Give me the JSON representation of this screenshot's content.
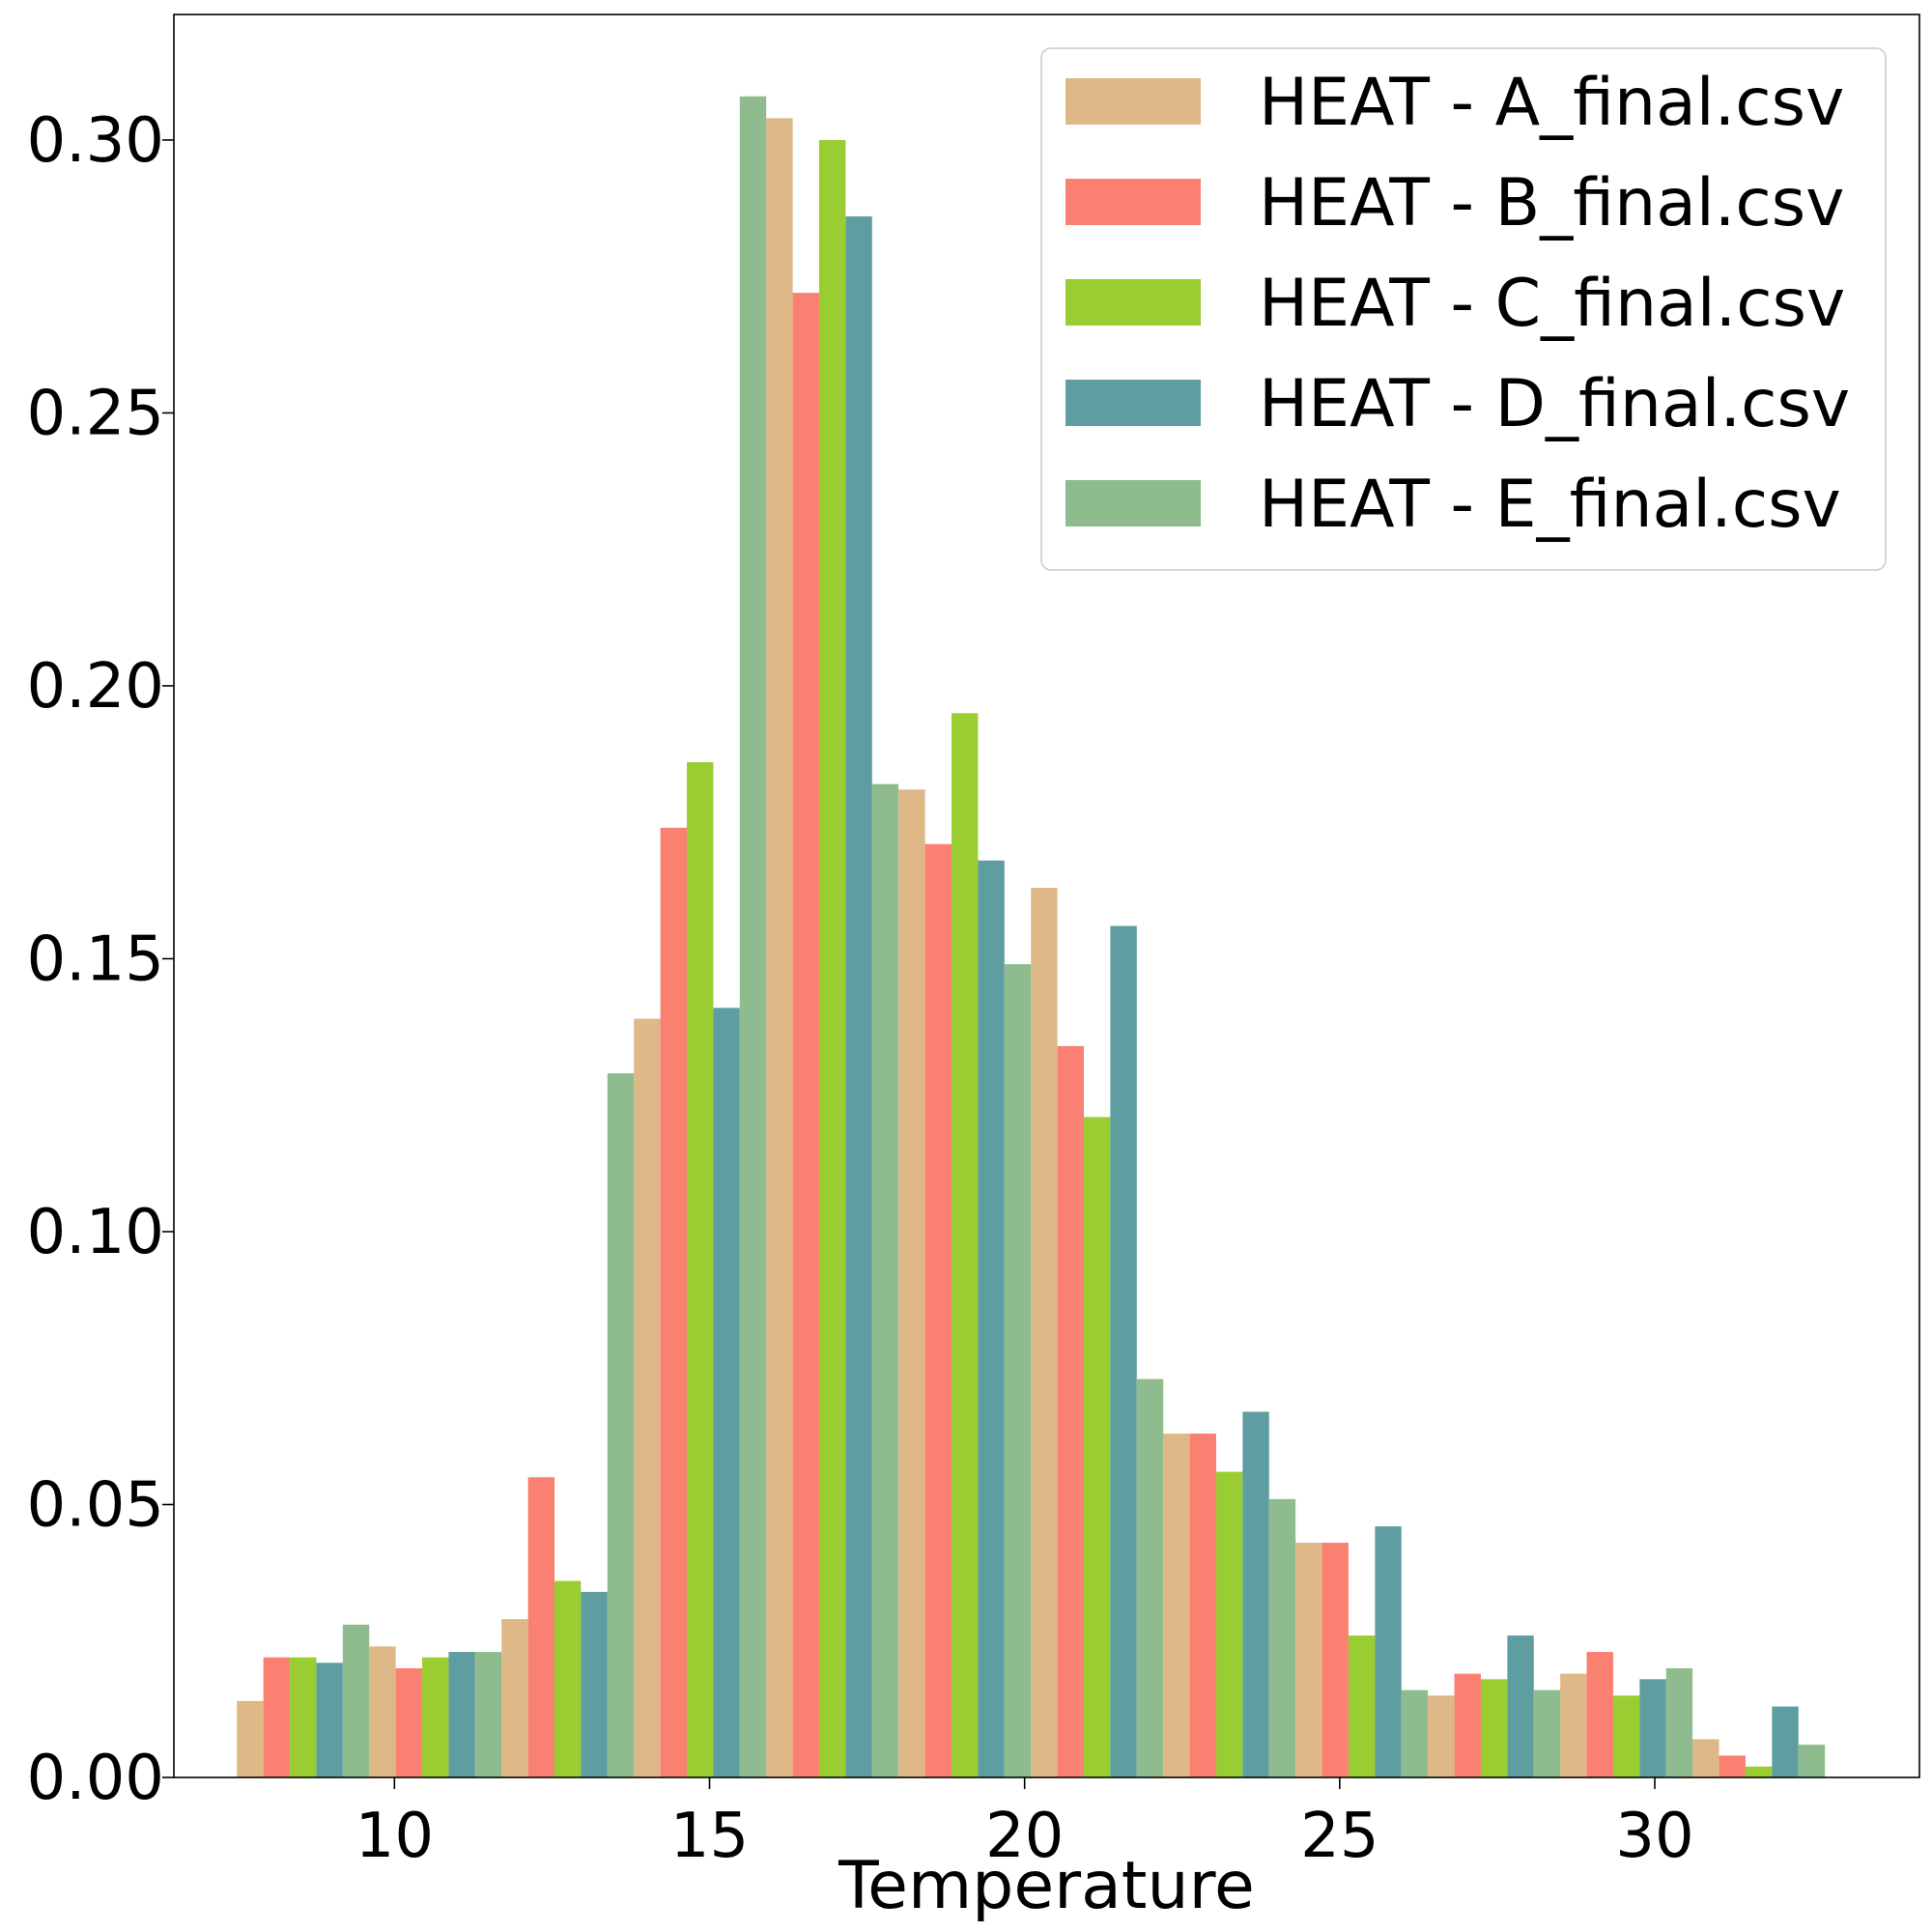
{
  "chart_data": {
    "type": "bar",
    "xlabel": "Temperature",
    "ylabel": "",
    "title": "",
    "xlim": [
      6.5,
      34.2
    ],
    "ylim": [
      0,
      0.323
    ],
    "xticks": [
      10,
      15,
      20,
      25,
      30
    ],
    "yticks": [
      0.0,
      0.05,
      0.1,
      0.15,
      0.2,
      0.25,
      0.3
    ],
    "bin_start": 7.5,
    "bin_width": 2.1,
    "legend_position": "top-right",
    "series": [
      {
        "name": "HEAT - A_final.csv",
        "color": "#DEB887",
        "values": [
          0.014,
          0.024,
          0.029,
          0.139,
          0.304,
          0.181,
          0.163,
          0.063,
          0.043,
          0.015,
          0.019,
          0.007
        ]
      },
      {
        "name": "HEAT - B_final.csv",
        "color": "#FA8072",
        "values": [
          0.022,
          0.02,
          0.055,
          0.174,
          0.272,
          0.171,
          0.134,
          0.063,
          0.043,
          0.019,
          0.023,
          0.004
        ]
      },
      {
        "name": "HEAT - C_final.csv",
        "color": "#9ACD32",
        "values": [
          0.022,
          0.022,
          0.036,
          0.186,
          0.3,
          0.195,
          0.121,
          0.056,
          0.026,
          0.018,
          0.015,
          0.002
        ]
      },
      {
        "name": "HEAT - D_final.csv",
        "color": "#5F9EA0",
        "values": [
          0.021,
          0.023,
          0.034,
          0.141,
          0.286,
          0.168,
          0.156,
          0.067,
          0.046,
          0.026,
          0.018,
          0.013
        ]
      },
      {
        "name": "HEAT - E_final.csv",
        "color": "#8FBC8F",
        "values": [
          0.028,
          0.023,
          0.129,
          0.308,
          0.182,
          0.149,
          0.073,
          0.051,
          0.016,
          0.016,
          0.02,
          0.006
        ]
      }
    ]
  }
}
